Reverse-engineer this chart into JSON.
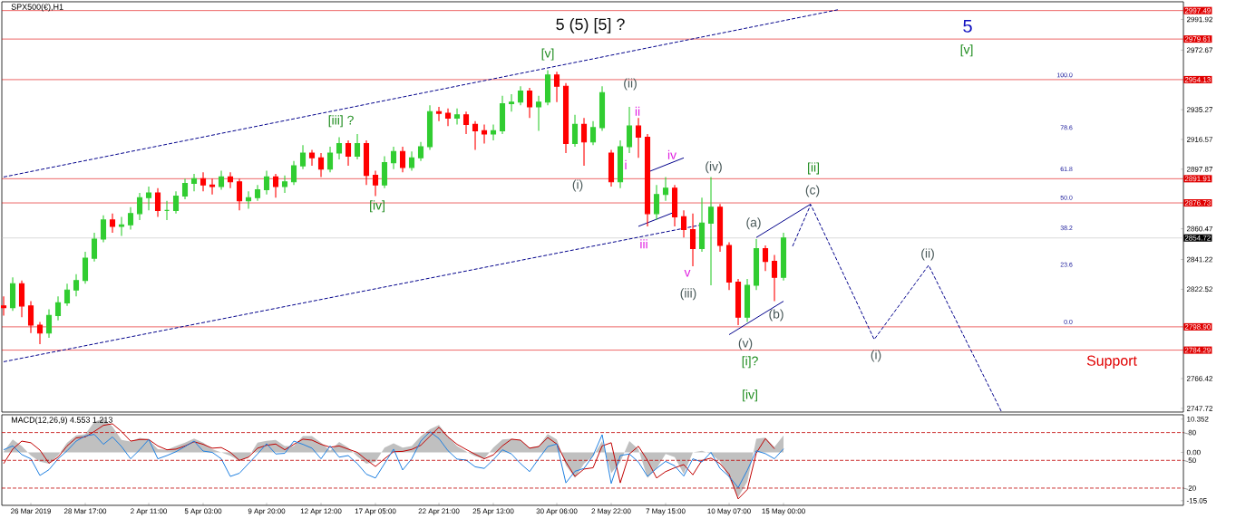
{
  "chart_data": [
    {
      "type": "candlestick",
      "title": "SPX500(€),H1",
      "categories": [
        null,
        null,
        null,
        null,
        null,
        null,
        null,
        null,
        null,
        null,
        null,
        null,
        null,
        null,
        null,
        null,
        null,
        null,
        null,
        null,
        null,
        null,
        null,
        null,
        null,
        null,
        null,
        null,
        null,
        null,
        null,
        null,
        null,
        null,
        null,
        null,
        null,
        null,
        null,
        null,
        null,
        null,
        null,
        null,
        null,
        null,
        null,
        null,
        null,
        null,
        null,
        null,
        null,
        null,
        null,
        null,
        null,
        null,
        null,
        null,
        null,
        null,
        null,
        null,
        null,
        null,
        null,
        null,
        null,
        null,
        null,
        null,
        null,
        null,
        null,
        null,
        null,
        null,
        null,
        null,
        null,
        null,
        null,
        null,
        null,
        null,
        null,
        null,
        null,
        null,
        null,
        null,
        null,
        null,
        null,
        null,
        null,
        null,
        null,
        null,
        null,
        null,
        null,
        null,
        null,
        null,
        null,
        null,
        null,
        null,
        null,
        null,
        null,
        null,
        null,
        null,
        null,
        null,
        null,
        null,
        null,
        null,
        null,
        null,
        null,
        null,
        null,
        null,
        null,
        null,
        null
      ],
      "ohlc": [
        [
          2812,
          2818,
          2806,
          2811
        ],
        [
          2811,
          2830,
          2809,
          2826
        ],
        [
          2826,
          2828,
          2805,
          2812
        ],
        [
          2812,
          2815,
          2795,
          2800
        ],
        [
          2800,
          2802,
          2788,
          2795
        ],
        [
          2795,
          2810,
          2792,
          2806
        ],
        [
          2806,
          2818,
          2803,
          2814
        ],
        [
          2814,
          2826,
          2812,
          2822
        ],
        [
          2822,
          2832,
          2818,
          2828
        ],
        [
          2828,
          2846,
          2826,
          2842
        ],
        [
          2842,
          2858,
          2840,
          2854
        ],
        [
          2854,
          2869,
          2852,
          2866
        ],
        [
          2866,
          2870,
          2858,
          2862
        ],
        [
          2862,
          2868,
          2856,
          2863
        ],
        [
          2863,
          2874,
          2860,
          2870
        ],
        [
          2870,
          2883,
          2866,
          2880
        ],
        [
          2880,
          2887,
          2872,
          2883
        ],
        [
          2883,
          2886,
          2868,
          2872
        ],
        [
          2872,
          2878,
          2866,
          2872
        ],
        [
          2872,
          2884,
          2870,
          2881
        ],
        [
          2881,
          2892,
          2879,
          2889
        ],
        [
          2889,
          2895,
          2884,
          2892
        ],
        [
          2892,
          2896,
          2884,
          2888
        ],
        [
          2888,
          2892,
          2882,
          2887
        ],
        [
          2887,
          2897,
          2885,
          2893
        ],
        [
          2893,
          2896,
          2886,
          2890
        ],
        [
          2890,
          2892,
          2872,
          2878
        ],
        [
          2878,
          2884,
          2873,
          2880
        ],
        [
          2880,
          2888,
          2878,
          2885
        ],
        [
          2885,
          2897,
          2882,
          2893
        ],
        [
          2893,
          2895,
          2880,
          2887
        ],
        [
          2887,
          2894,
          2883,
          2890
        ],
        [
          2890,
          2903,
          2888,
          2900
        ],
        [
          2900,
          2913,
          2898,
          2908
        ],
        [
          2908,
          2910,
          2900,
          2905
        ],
        [
          2905,
          2908,
          2893,
          2898
        ],
        [
          2898,
          2912,
          2896,
          2908
        ],
        [
          2908,
          2918,
          2904,
          2914
        ],
        [
          2914,
          2916,
          2900,
          2906
        ],
        [
          2906,
          2920,
          2904,
          2914
        ],
        [
          2914,
          2916,
          2888,
          2894
        ],
        [
          2894,
          2897,
          2881,
          2888
        ],
        [
          2888,
          2906,
          2886,
          2902
        ],
        [
          2902,
          2912,
          2898,
          2909
        ],
        [
          2909,
          2912,
          2896,
          2899
        ],
        [
          2899,
          2909,
          2897,
          2905
        ],
        [
          2905,
          2915,
          2903,
          2912
        ],
        [
          2912,
          2938,
          2910,
          2934
        ],
        [
          2934,
          2937,
          2928,
          2933
        ],
        [
          2933,
          2936,
          2925,
          2930
        ],
        [
          2930,
          2936,
          2926,
          2932
        ],
        [
          2932,
          2934,
          2920,
          2926
        ],
        [
          2926,
          2928,
          2910,
          2922
        ],
        [
          2922,
          2926,
          2914,
          2920
        ],
        [
          2920,
          2926,
          2916,
          2922
        ],
        [
          2922,
          2944,
          2920,
          2939
        ],
        [
          2939,
          2945,
          2934,
          2940
        ],
        [
          2940,
          2950,
          2938,
          2947
        ],
        [
          2947,
          2949,
          2930,
          2937
        ],
        [
          2937,
          2944,
          2922,
          2940
        ],
        [
          2940,
          2960,
          2938,
          2957
        ],
        [
          2957,
          2959,
          2940,
          2950
        ],
        [
          2950,
          2952,
          2908,
          2914
        ],
        [
          2914,
          2932,
          2912,
          2926
        ],
        [
          2926,
          2930,
          2900,
          2915
        ],
        [
          2915,
          2928,
          2913,
          2924
        ],
        [
          2924,
          2950,
          2922,
          2946
        ],
        [
          2908,
          2910,
          2887,
          2890
        ],
        [
          2890,
          2916,
          2886,
          2912
        ],
        [
          2912,
          2937,
          2908,
          2925
        ],
        [
          2925,
          2930,
          2905,
          2918
        ],
        [
          2918,
          2920,
          2862,
          2870
        ],
        [
          2870,
          2888,
          2866,
          2882
        ],
        [
          2882,
          2893,
          2878,
          2886
        ],
        [
          2886,
          2888,
          2862,
          2868
        ],
        [
          2868,
          2872,
          2855,
          2860
        ],
        [
          2860,
          2870,
          2837,
          2848
        ],
        [
          2848,
          2880,
          2846,
          2864
        ],
        [
          2864,
          2893,
          2825,
          2874
        ],
        [
          2874,
          2876,
          2846,
          2850
        ],
        [
          2850,
          2852,
          2822,
          2827
        ],
        [
          2827,
          2829,
          2800,
          2805
        ],
        [
          2805,
          2829,
          2802,
          2825
        ],
        [
          2825,
          2854,
          2822,
          2848
        ],
        [
          2848,
          2850,
          2834,
          2840
        ],
        [
          2840,
          2844,
          2815,
          2830
        ],
        [
          2830,
          2858,
          2828,
          2854.72
        ],
        null,
        null,
        null,
        null,
        null,
        null,
        null,
        null,
        null,
        null,
        null,
        null,
        null,
        null,
        null,
        null,
        null,
        null,
        null,
        null,
        null,
        null,
        null,
        null,
        null,
        null,
        null,
        null,
        null,
        null,
        null,
        null,
        null,
        null,
        null,
        null,
        null,
        null,
        null,
        null,
        null,
        null,
        null,
        null
      ],
      "series": [
        {
          "type": "line",
          "color": "#00008b",
          "line_style": "dashed",
          "values": [
            2893,
            null,
            null,
            null,
            null,
            null,
            null,
            null,
            null,
            null,
            null,
            null,
            null,
            null,
            null,
            null,
            null,
            null,
            null,
            null,
            null,
            null,
            null,
            null,
            null,
            null,
            null,
            null,
            null,
            null,
            null,
            null,
            null,
            null,
            null,
            null,
            null,
            null,
            null,
            null,
            null,
            null,
            null,
            null,
            null,
            null,
            null,
            null,
            null,
            null,
            null,
            null,
            null,
            null,
            null,
            null,
            null,
            null,
            null,
            null,
            null,
            null,
            null,
            null,
            null,
            null,
            null,
            null,
            null,
            null,
            null,
            null,
            null,
            null,
            null,
            null,
            null,
            null,
            null,
            null,
            null,
            null,
            null,
            null,
            null,
            null,
            null,
            null,
            null,
            null,
            null,
            null,
            2998,
            null,
            null,
            null,
            null,
            null,
            null,
            null,
            null,
            null,
            null,
            null,
            null,
            null,
            null,
            null,
            null,
            null,
            null,
            null,
            null,
            null,
            null,
            null,
            null,
            null,
            null,
            null,
            null,
            null,
            null,
            null,
            null,
            null,
            null,
            null,
            null,
            null,
            null
          ]
        },
        {
          "type": "line",
          "color": "#00008b",
          "line_style": "dashed",
          "values": [
            2777,
            null,
            null,
            null,
            null,
            null,
            null,
            null,
            null,
            null,
            null,
            null,
            null,
            null,
            null,
            null,
            null,
            null,
            null,
            null,
            null,
            null,
            null,
            null,
            null,
            null,
            null,
            null,
            null,
            null,
            null,
            null,
            null,
            null,
            null,
            null,
            null,
            null,
            null,
            null,
            null,
            null,
            null,
            null,
            null,
            null,
            null,
            null,
            null,
            null,
            null,
            null,
            null,
            null,
            null,
            null,
            null,
            null,
            null,
            null,
            null,
            null,
            null,
            null,
            null,
            null,
            null,
            null,
            null,
            null,
            null,
            null,
            null,
            null,
            null,
            null,
            null,
            2863,
            null,
            null,
            null,
            null,
            null,
            null,
            null,
            null,
            null,
            null,
            null,
            null,
            null,
            null,
            null,
            null,
            null,
            null,
            null,
            null,
            null,
            null,
            null,
            null,
            null,
            null,
            null,
            null,
            null,
            null,
            null,
            null,
            null,
            null,
            null,
            null,
            null,
            null,
            null,
            null,
            null,
            null,
            null,
            null,
            null,
            null,
            null,
            null,
            null,
            null,
            null,
            null,
            null
          ]
        },
        {
          "type": "line",
          "color": "#00008b",
          "line_style": "solid",
          "values": [
            null,
            null,
            null,
            null,
            null,
            null,
            null,
            null,
            null,
            null,
            null,
            null,
            null,
            null,
            null,
            null,
            null,
            null,
            null,
            null,
            null,
            null,
            null,
            null,
            null,
            null,
            null,
            null,
            null,
            null,
            null,
            null,
            null,
            null,
            null,
            null,
            null,
            null,
            null,
            null,
            null,
            null,
            null,
            null,
            null,
            null,
            null,
            null,
            null,
            null,
            null,
            null,
            null,
            null,
            null,
            null,
            null,
            null,
            null,
            null,
            null,
            null,
            null,
            null,
            null,
            null,
            null,
            null,
            null,
            null,
            null,
            2896,
            null,
            null,
            null,
            2905,
            null,
            null,
            null,
            null,
            null,
            null,
            null,
            null,
            null,
            null,
            null,
            null,
            null,
            null,
            null,
            null,
            null,
            null,
            null,
            null,
            null,
            null,
            null,
            null,
            null,
            null,
            null,
            null,
            null,
            null,
            null,
            null,
            null,
            null,
            null,
            null,
            null,
            null,
            null,
            null,
            null,
            null,
            null,
            null,
            null,
            null,
            null,
            null,
            null,
            null,
            null,
            null,
            null,
            null,
            null
          ]
        },
        {
          "type": "line",
          "color": "#00008b",
          "line_style": "solid",
          "values": [
            null,
            null,
            null,
            null,
            null,
            null,
            null,
            null,
            null,
            null,
            null,
            null,
            null,
            null,
            null,
            null,
            null,
            null,
            null,
            null,
            null,
            null,
            null,
            null,
            null,
            null,
            null,
            null,
            null,
            null,
            null,
            null,
            null,
            null,
            null,
            null,
            null,
            null,
            null,
            null,
            null,
            null,
            null,
            null,
            null,
            null,
            null,
            null,
            null,
            null,
            null,
            null,
            null,
            null,
            null,
            null,
            null,
            null,
            null,
            null,
            null,
            null,
            null,
            null,
            null,
            null,
            null,
            null,
            null,
            null,
            2862,
            null,
            null,
            null,
            2871,
            null,
            null,
            null,
            null,
            null,
            null,
            null,
            null,
            null,
            null,
            null,
            null,
            null,
            null,
            null,
            null,
            null,
            null,
            null,
            null,
            null,
            null,
            null,
            null,
            null,
            null,
            null,
            null,
            null,
            null,
            null,
            null,
            null,
            null,
            null,
            null,
            null,
            null,
            null,
            null,
            null,
            null,
            null,
            null,
            null,
            null,
            null,
            null,
            null,
            null,
            null,
            null,
            null,
            null,
            null,
            null
          ]
        },
        {
          "type": "line",
          "color": "#00008b",
          "line_style": "solid",
          "values": [
            null,
            null,
            null,
            null,
            null,
            null,
            null,
            null,
            null,
            null,
            null,
            null,
            null,
            null,
            null,
            null,
            null,
            null,
            null,
            null,
            null,
            null,
            null,
            null,
            null,
            null,
            null,
            null,
            null,
            null,
            null,
            null,
            null,
            null,
            null,
            null,
            null,
            null,
            null,
            null,
            null,
            null,
            null,
            null,
            null,
            null,
            null,
            null,
            null,
            null,
            null,
            null,
            null,
            null,
            null,
            null,
            null,
            null,
            null,
            null,
            null,
            null,
            null,
            null,
            null,
            null,
            null,
            null,
            null,
            null,
            null,
            null,
            null,
            null,
            null,
            null,
            null,
            null,
            null,
            null,
            null,
            null,
            null,
            2855,
            null,
            null,
            null,
            null,
            null,
            2876,
            null,
            null,
            null,
            null,
            null,
            null,
            null,
            null,
            null,
            null,
            null,
            null,
            null,
            null,
            null,
            null,
            null,
            null,
            null,
            null,
            null,
            null,
            null,
            null,
            null,
            null,
            null,
            null,
            null,
            null,
            null,
            null,
            null,
            null,
            null,
            null,
            null,
            null,
            null,
            null,
            null
          ]
        },
        {
          "type": "line",
          "color": "#00008b",
          "line_style": "solid",
          "values": [
            null,
            null,
            null,
            null,
            null,
            null,
            null,
            null,
            null,
            null,
            null,
            null,
            null,
            null,
            null,
            null,
            null,
            null,
            null,
            null,
            null,
            null,
            null,
            null,
            null,
            null,
            null,
            null,
            null,
            null,
            null,
            null,
            null,
            null,
            null,
            null,
            null,
            null,
            null,
            null,
            null,
            null,
            null,
            null,
            null,
            null,
            null,
            null,
            null,
            null,
            null,
            null,
            null,
            null,
            null,
            null,
            null,
            null,
            null,
            null,
            null,
            null,
            null,
            null,
            null,
            null,
            null,
            null,
            null,
            null,
            null,
            null,
            null,
            null,
            null,
            null,
            null,
            null,
            null,
            null,
            2794,
            null,
            null,
            null,
            null,
            null,
            2815,
            null,
            null,
            null,
            null,
            null,
            null,
            null,
            null,
            null,
            null,
            null,
            null,
            null,
            null,
            null,
            null,
            null,
            null,
            null,
            null,
            null,
            null,
            null,
            null,
            null,
            null,
            null,
            null,
            null,
            null,
            null,
            null,
            null,
            null,
            null,
            null,
            null,
            null,
            null,
            null,
            null,
            null,
            null,
            null
          ]
        },
        {
          "type": "line",
          "color": "#00008b",
          "line_style": "dashed",
          "values": [
            null,
            null,
            null,
            null,
            null,
            null,
            null,
            null,
            null,
            null,
            null,
            null,
            null,
            null,
            null,
            null,
            null,
            null,
            null,
            null,
            null,
            null,
            null,
            null,
            null,
            null,
            null,
            null,
            null,
            null,
            null,
            null,
            null,
            null,
            null,
            null,
            null,
            null,
            null,
            null,
            null,
            null,
            null,
            null,
            null,
            null,
            null,
            null,
            null,
            null,
            null,
            null,
            null,
            null,
            null,
            null,
            null,
            null,
            null,
            null,
            null,
            null,
            null,
            null,
            null,
            null,
            null,
            null,
            null,
            null,
            null,
            null,
            null,
            null,
            null,
            null,
            null,
            null,
            null,
            null,
            null,
            null,
            null,
            null,
            null,
            null,
            null,
            2849.5,
            null,
            2875.7,
            null,
            null,
            null,
            null,
            null,
            null,
            2791,
            null,
            null,
            null,
            null,
            null,
            2837.6,
            null,
            null,
            null,
            null,
            null,
            null,
            null,
            2746,
            null,
            null,
            null,
            null,
            null,
            null,
            null,
            null,
            null,
            null,
            null,
            null,
            null,
            null,
            null,
            null,
            null,
            null,
            null,
            null
          ]
        }
      ],
      "ylim": [
        2745.4,
        3003.0
      ],
      "yticks": [
        2747.72,
        2766.42,
        2822.52,
        2841.22,
        2860.47,
        2897.87,
        2916.57,
        2935.27,
        2972.67,
        2991.92
      ],
      "tick_labels": "y",
      "ref_lines": [
        {
          "axis": "y",
          "value": 2997.49,
          "label": "2997.49",
          "color": "#e00000"
        },
        {
          "axis": "y",
          "value": 2979.61,
          "label": "2979.61",
          "color": "#e00000"
        },
        {
          "axis": "y",
          "value": 2954.13,
          "label": "2954.13",
          "color": "#e00000"
        },
        {
          "axis": "y",
          "value": 2891.91,
          "label": "2891.91",
          "color": "#e00000"
        },
        {
          "axis": "y",
          "value": 2876.73,
          "label": "2876.73",
          "color": "#e00000"
        },
        {
          "axis": "y",
          "value": 2854.72,
          "label": "2854.72",
          "color": "#c0c0c0"
        },
        {
          "axis": "y",
          "value": 2798.9,
          "label": "2798.90",
          "color": "#e00000"
        },
        {
          "axis": "y",
          "value": 2784.29,
          "label": "2784.29",
          "color": "#e00000"
        }
      ],
      "annotations": [
        "5 (5) [5] ?",
        "[v]",
        "[iii] ?",
        "[iv]",
        "(ii)",
        "ii",
        "(i)",
        "i",
        "iv",
        "(iv)",
        "iii",
        "v",
        "(iii)",
        "(a)",
        "(b)",
        "(v)",
        "[i]?",
        "[iv]",
        "[ii]",
        "(c)",
        "(i)",
        "(ii)",
        "5",
        "[v]",
        "100.0",
        "78.6",
        "61.8",
        "50.0",
        "38.2",
        "23.6",
        "0.0",
        "Support"
      ]
    },
    {
      "type": "line",
      "title": "MACD(12,26,9) 4.553 1.213",
      "categories": [
        null,
        null,
        null,
        "26 Mar 2019",
        null,
        null,
        null,
        null,
        null,
        "28 Mar 17:00",
        null,
        null,
        null,
        null,
        null,
        null,
        "2 Apr 11:00",
        null,
        null,
        null,
        null,
        null,
        "5 Apr 03:00",
        null,
        null,
        null,
        null,
        null,
        null,
        "9 Apr 20:00",
        null,
        null,
        null,
        null,
        null,
        "12 Apr 12:00",
        null,
        null,
        null,
        null,
        null,
        "17 Apr 05:00",
        null,
        null,
        null,
        null,
        null,
        null,
        "22 Apr 21:00",
        null,
        null,
        null,
        null,
        null,
        "25 Apr 13:00",
        null,
        null,
        null,
        null,
        null,
        null,
        "30 Apr 06:00",
        null,
        null,
        null,
        null,
        null,
        "2 May 22:00",
        null,
        null,
        null,
        null,
        null,
        "7 May 15:00",
        null,
        null,
        null,
        null,
        null,
        null,
        "10 May 07:00",
        null,
        null,
        null,
        null,
        null,
        "15 May 00:00",
        null,
        null,
        null,
        null,
        null,
        null,
        null,
        null,
        null,
        null,
        null,
        null,
        null,
        null,
        null,
        null,
        null,
        null,
        null,
        null,
        null,
        null,
        null,
        null,
        null,
        null,
        null,
        null,
        null,
        null,
        null,
        null,
        null,
        null,
        null,
        null,
        null,
        null,
        null,
        null,
        null,
        null,
        null,
        null
      ],
      "series": [
        {
          "type": "area",
          "color": "#c0c0c0",
          "values": [
            0.2,
            4,
            2,
            -1,
            -2.9,
            -3.5,
            -1,
            3,
            5.3,
            5.6,
            9.5,
            10.5,
            8,
            3.9,
            3.4,
            4.5,
            4,
            1,
            0.8,
            2,
            3,
            4.3,
            3,
            1,
            0,
            -1.1,
            -2.6,
            -1.5,
            3,
            3.6,
            3.9,
            2,
            2,
            5.1,
            5.1,
            3,
            0.5,
            3.2,
            1.5,
            -1.3,
            -3.5,
            -3,
            1.5,
            2.8,
            1.5,
            2,
            5,
            7.2,
            8.5,
            5,
            2,
            0.3,
            -1.2,
            -2,
            1.5,
            4,
            4.2,
            3.8,
            1.5,
            2,
            5.7,
            4,
            -4,
            -8,
            -3.5,
            -1.2,
            3.5,
            -6.5,
            -3,
            3.5,
            1,
            -8,
            -5,
            -0.5,
            -1.5,
            -6.8,
            0,
            0.5,
            -0.5,
            -2.8,
            -8,
            -14,
            -9.2,
            4.2,
            4.6,
            1.7,
            5.3,
            null,
            null,
            null,
            null,
            null,
            null,
            null,
            null,
            null,
            null,
            null,
            null,
            null,
            null,
            null,
            null,
            null,
            null,
            null,
            null,
            null,
            null,
            null,
            null,
            null,
            null,
            null,
            null,
            null,
            null,
            null,
            null,
            null,
            null,
            null,
            null,
            null,
            null,
            null,
            null,
            null,
            null,
            null,
            null
          ]
        },
        {
          "type": "line",
          "color": "#c00000",
          "values": [
            -3.5,
            1,
            3.5,
            3,
            0.7,
            -3.4,
            -1.5,
            2,
            4.5,
            4.8,
            6.5,
            8.4,
            8.9,
            6.5,
            3.5,
            4,
            4,
            2,
            0.8,
            1,
            2,
            3.3,
            2.5,
            1.3,
            1.5,
            0,
            -2.5,
            -1.5,
            1.3,
            2.2,
            2.6,
            0.8,
            2.5,
            4.1,
            3.8,
            2.5,
            1.6,
            2,
            1,
            0,
            -2.3,
            -4.4,
            -2,
            0.2,
            0.3,
            0.9,
            2.2,
            5,
            7.8,
            4.8,
            2.5,
            0.9,
            -0.6,
            -2,
            -0.8,
            2,
            4.1,
            3.8,
            1.3,
            1.8,
            4.6,
            2.6,
            -3,
            -7.5,
            -5.2,
            -4.8,
            2,
            3,
            -9.5,
            -0.5,
            1.9,
            -2.5,
            -8,
            -6,
            -4.8,
            -3.8,
            -7,
            -2.5,
            -1.8,
            -3.5,
            -6.8,
            -14.5,
            -11.6,
            -0.2,
            4.3,
            1.1,
            null,
            null,
            null,
            null,
            null,
            null,
            null,
            null,
            null,
            null,
            null,
            null,
            null,
            null,
            null,
            null,
            null,
            null,
            null,
            null,
            null,
            null,
            null,
            null,
            null,
            null,
            null,
            null,
            null,
            null,
            null,
            null,
            null,
            null,
            null,
            null,
            null,
            null,
            null,
            null,
            null,
            null,
            null,
            null,
            null
          ]
        },
        {
          "type": "line",
          "color": "#1e7fe0",
          "values": [
            0.8,
            2,
            -0.7,
            -2,
            -7.2,
            -5.4,
            -2,
            0.5,
            3.5,
            5.1,
            5.6,
            2.5,
            4.8,
            1.8,
            -2,
            0.8,
            4,
            -2,
            -1,
            0.2,
            1.8,
            3.5,
            0.4,
            0,
            -2,
            -7.5,
            -6.5,
            -3.5,
            -0.5,
            2.7,
            -0.5,
            -0.3,
            3.5,
            2.5,
            1.3,
            -2,
            2,
            -1.5,
            -1,
            -3.5,
            -6.8,
            -8,
            -3.5,
            1,
            -5.5,
            -2,
            3.5,
            6.4,
            4.3,
            0.5,
            -2.1,
            -2.4,
            -4.5,
            -5,
            -2.3,
            0.8,
            -0.5,
            -3.5,
            -6,
            -2,
            1.8,
            2.6,
            -9.5,
            -5.9,
            -5,
            -1,
            5.5,
            -9.7,
            -1,
            -0.5,
            -3,
            -7.5,
            -5,
            -2.8,
            -4.2,
            -7.4,
            -2,
            -3,
            0,
            -5,
            -7.5,
            -11,
            -5.6,
            0.5,
            -0.4,
            -2,
            1.1,
            null,
            null,
            null,
            null,
            null,
            null,
            null,
            null,
            null,
            null,
            null,
            null,
            null,
            null,
            null,
            null,
            null,
            null,
            null,
            null,
            null,
            null,
            null,
            null,
            null,
            null,
            null,
            null,
            null,
            null,
            null,
            null,
            null,
            null,
            null,
            null,
            null,
            null,
            null,
            null,
            null,
            null,
            null,
            null
          ]
        }
      ],
      "ylim": [
        -16.5,
        11.7
      ],
      "yticks": [
        10.352,
        {
          "value": 0,
          "label": "0.00"
        },
        -15.05
      ],
      "y2lim": [
        1.4,
        99.2
      ],
      "y2ticks": [
        80,
        50,
        20
      ],
      "ref_lines": [
        {
          "axis": "y2",
          "value": 80,
          "color": "#c00000",
          "line_style": "dashed"
        },
        {
          "axis": "y2",
          "value": 50,
          "color": "#c00000",
          "line_style": "dashed"
        },
        {
          "axis": "y2",
          "value": 20,
          "color": "#c00000",
          "line_style": "dashed"
        }
      ]
    }
  ]
}
